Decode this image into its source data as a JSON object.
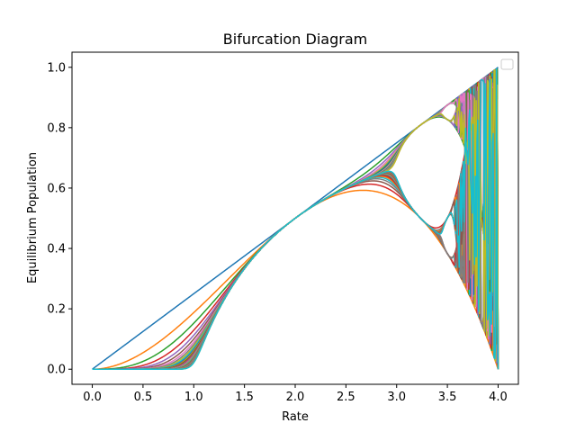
{
  "chart_data": {
    "type": "line",
    "title": "Bifurcation Diagram",
    "xlabel": "Rate",
    "ylabel": "Equilibrium Population",
    "xlim": [
      -0.2,
      4.2
    ],
    "ylim": [
      -0.05,
      1.05
    ],
    "x_ticks": [
      "0.0",
      "0.5",
      "1.0",
      "1.5",
      "2.0",
      "2.5",
      "3.0",
      "3.5",
      "4.0"
    ],
    "x_tick_values": [
      0,
      0.5,
      1,
      1.5,
      2,
      2.5,
      3,
      3.5,
      4
    ],
    "y_ticks": [
      "0.0",
      "0.2",
      "0.4",
      "0.6",
      "0.8",
      "1.0"
    ],
    "y_tick_values": [
      0,
      0.2,
      0.4,
      0.6,
      0.8,
      1.0
    ],
    "grid": false,
    "legend": {
      "placement": "top-right",
      "entries": []
    },
    "x_domain": [
      0,
      4
    ],
    "x0": 0.5,
    "iterations": 40,
    "colors": [
      "#1f77b4",
      "#ff7f0e",
      "#2ca02c",
      "#d62728",
      "#9467bd",
      "#8c564b",
      "#e377c2",
      "#7f7f7f",
      "#bcbd22",
      "#17becf"
    ]
  }
}
